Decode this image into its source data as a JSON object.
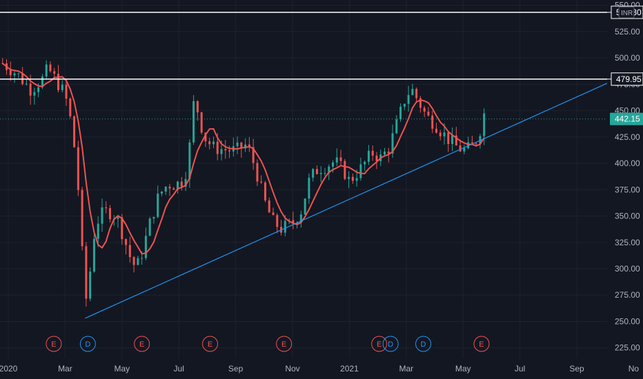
{
  "chart_data": {
    "type": "candlestick",
    "currency_label": "INR",
    "ylim": [
      215,
      555
    ],
    "y_ticks": [
      "225.00",
      "250.00",
      "275.00",
      "300.00",
      "325.00",
      "350.00",
      "375.00",
      "400.00",
      "425.00",
      "450.00",
      "475.00",
      "500.00",
      "525.00",
      "550.00"
    ],
    "x_ticks": [
      {
        "label": "2020",
        "t": 0
      },
      {
        "label": "Mar",
        "t": 2
      },
      {
        "label": "May",
        "t": 4
      },
      {
        "label": "Jul",
        "t": 6
      },
      {
        "label": "Sep",
        "t": 8
      },
      {
        "label": "Nov",
        "t": 10
      },
      {
        "label": "2021",
        "t": 12
      },
      {
        "label": "Mar",
        "t": 14
      },
      {
        "label": "May",
        "t": 16
      },
      {
        "label": "Jul",
        "t": 18
      },
      {
        "label": "Sep",
        "t": 20
      },
      {
        "label": "No",
        "t": 22
      }
    ],
    "horizontal_levels": [
      {
        "value": 543.3,
        "label": "543.30",
        "color": "#ffffff"
      },
      {
        "value": 479.95,
        "label": "479.95",
        "color": "#ffffff"
      }
    ],
    "last_price": {
      "value": 442.15,
      "label": "442.15",
      "color": "#26a69a"
    },
    "trendline": {
      "from": {
        "t": 2.7,
        "value": 253
      },
      "to": {
        "t": 22,
        "value": 476
      },
      "color": "#2196f3"
    },
    "price_path": [
      [
        -0.2,
        495
      ],
      [
        0.3,
        485
      ],
      [
        0.8,
        470
      ],
      [
        1.2,
        480
      ],
      [
        1.4,
        490
      ],
      [
        1.7,
        478
      ],
      [
        2.0,
        465
      ],
      [
        2.2,
        440
      ],
      [
        2.4,
        400
      ],
      [
        2.55,
        340
      ],
      [
        2.7,
        265
      ],
      [
        2.85,
        290
      ],
      [
        3.0,
        330
      ],
      [
        3.2,
        350
      ],
      [
        3.5,
        355
      ],
      [
        3.8,
        350
      ],
      [
        4.0,
        335
      ],
      [
        4.3,
        310
      ],
      [
        4.5,
        300
      ],
      [
        4.7,
        315
      ],
      [
        5.0,
        345
      ],
      [
        5.3,
        370
      ],
      [
        5.6,
        380
      ],
      [
        5.9,
        380
      ],
      [
        6.2,
        385
      ],
      [
        6.4,
        420
      ],
      [
        6.55,
        465
      ],
      [
        6.7,
        445
      ],
      [
        6.9,
        425
      ],
      [
        7.2,
        415
      ],
      [
        7.6,
        413
      ],
      [
        8.0,
        412
      ],
      [
        8.4,
        418
      ],
      [
        8.7,
        395
      ],
      [
        9.0,
        365
      ],
      [
        9.3,
        345
      ],
      [
        9.6,
        338
      ],
      [
        10.0,
        343
      ],
      [
        10.3,
        355
      ],
      [
        10.6,
        385
      ],
      [
        10.9,
        395
      ],
      [
        11.2,
        398
      ],
      [
        11.5,
        402
      ],
      [
        11.8,
        393
      ],
      [
        12.0,
        383
      ],
      [
        12.4,
        395
      ],
      [
        12.8,
        410
      ],
      [
        13.1,
        405
      ],
      [
        13.4,
        415
      ],
      [
        13.7,
        440
      ],
      [
        14.0,
        465
      ],
      [
        14.2,
        470
      ],
      [
        14.45,
        458
      ],
      [
        14.7,
        445
      ],
      [
        15.0,
        438
      ],
      [
        15.4,
        425
      ],
      [
        15.8,
        415
      ],
      [
        16.1,
        412
      ],
      [
        16.4,
        418
      ],
      [
        16.6,
        432
      ],
      [
        16.75,
        448
      ],
      [
        16.85,
        445
      ]
    ],
    "event_markers": [
      {
        "label": "E",
        "t": 1.6,
        "color": "#ef5350"
      },
      {
        "label": "D",
        "t": 2.8,
        "color": "#2196f3"
      },
      {
        "label": "E",
        "t": 4.7,
        "color": "#ef5350"
      },
      {
        "label": "E",
        "t": 7.1,
        "color": "#ef5350"
      },
      {
        "label": "E",
        "t": 9.7,
        "color": "#ef5350"
      },
      {
        "label": "E",
        "t": 13.05,
        "color": "#ef5350"
      },
      {
        "label": "D",
        "t": 13.45,
        "color": "#2196f3"
      },
      {
        "label": "D",
        "t": 14.6,
        "color": "#2196f3"
      },
      {
        "label": "E",
        "t": 16.65,
        "color": "#ef5350"
      }
    ],
    "colors": {
      "background": "#131722",
      "up": "#26a69a",
      "down": "#ef5350",
      "ma": "#ef5350",
      "axis_text": "#b2b5be"
    }
  }
}
